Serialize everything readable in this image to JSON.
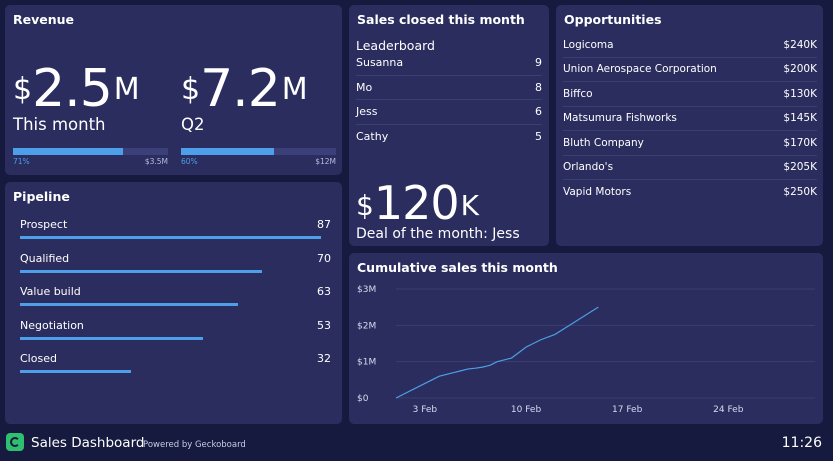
{
  "revenue": {
    "title": "Revenue",
    "items": [
      {
        "currency": "$",
        "value": "2.5",
        "suffix": "M",
        "label": "This month",
        "progress": 0.71,
        "percent_label": "71%",
        "target": "$3.5M"
      },
      {
        "currency": "$",
        "value": "7.2",
        "suffix": "M",
        "label": "Q2",
        "progress": 0.6,
        "percent_label": "60%",
        "target": "$12M"
      }
    ]
  },
  "sales": {
    "title": "Sales closed this month",
    "leaderboard_title": "Leaderboard",
    "rows": [
      {
        "name": "Susanna",
        "value": "9"
      },
      {
        "name": "Mo",
        "value": "8"
      },
      {
        "name": "Jess",
        "value": "6"
      },
      {
        "name": "Cathy",
        "value": "5"
      }
    ],
    "deal": {
      "currency": "$",
      "value": "120",
      "suffix": "K",
      "label": "Deal of the month: Jess"
    }
  },
  "opportunities": {
    "title": "Opportunities",
    "rows": [
      {
        "name": "Logicoma",
        "value": "$240K"
      },
      {
        "name": "Union Aerospace Corporation",
        "value": "$200K"
      },
      {
        "name": "Biffco",
        "value": "$130K"
      },
      {
        "name": "Matsumura Fishworks",
        "value": "$145K"
      },
      {
        "name": "Bluth Company",
        "value": "$170K"
      },
      {
        "name": "Orlando's",
        "value": "$205K"
      },
      {
        "name": "Vapid Motors",
        "value": "$250K"
      }
    ]
  },
  "pipeline": {
    "title": "Pipeline",
    "max": 90,
    "rows": [
      {
        "name": "Prospect",
        "value": 87
      },
      {
        "name": "Qualified",
        "value": 70
      },
      {
        "name": "Value build",
        "value": 63
      },
      {
        "name": "Negotiation",
        "value": 53
      },
      {
        "name": "Closed",
        "value": 32
      }
    ]
  },
  "chart_data": {
    "type": "line",
    "title": "Cumulative sales this month",
    "xlabel": "",
    "ylabel": "",
    "x_ticks": [
      3,
      10,
      17,
      24
    ],
    "x_tick_labels": [
      "3 Feb",
      "10 Feb",
      "17 Feb",
      "24 Feb"
    ],
    "xlim": [
      1,
      30
    ],
    "y_ticks": [
      0,
      1,
      2,
      3
    ],
    "y_tick_labels": [
      "$0",
      "$1M",
      "$2M",
      "$3M"
    ],
    "ylim": [
      0,
      3
    ],
    "grid": true,
    "series": [
      {
        "name": "Cumulative sales",
        "color": "#4c9fe8",
        "x": [
          1,
          3,
          3.5,
          4,
          5,
          5.5,
          6,
          6.5,
          7,
          7.5,
          8,
          9,
          10,
          11,
          12,
          13,
          14,
          15
        ],
        "values": [
          0,
          0.4,
          0.5,
          0.6,
          0.7,
          0.75,
          0.8,
          0.82,
          0.85,
          0.9,
          1.0,
          1.1,
          1.4,
          1.6,
          1.75,
          2.0,
          2.25,
          2.5
        ]
      }
    ]
  },
  "footer": {
    "title": "Sales Dashboard",
    "powered": "Powered by Geckoboard",
    "time": "11:26"
  },
  "colors": {
    "background": "#161a3e",
    "panel": "#2a2d5e",
    "accent": "#4c9fe8",
    "logo": "#2fbf71"
  }
}
